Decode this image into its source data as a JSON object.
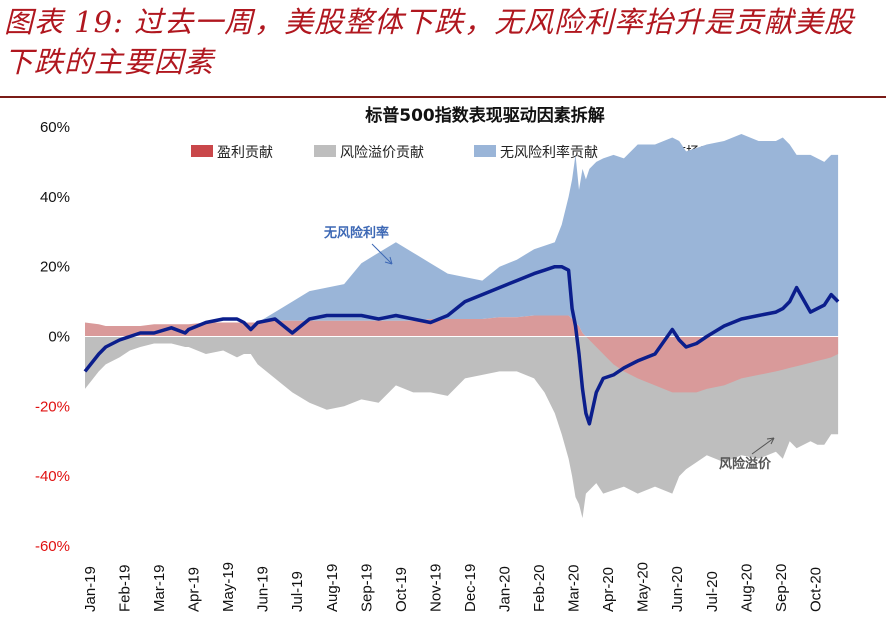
{
  "figure_title": "图表 19: 过去一周，美股整体下跌，无风险利率抬升是贡献美股下跌的主要因素",
  "colors": {
    "title": "#b0171f",
    "earnings": "#c9474a",
    "earnings_fill": "#d99a9a",
    "risk_premium": "#bebebe",
    "risk_free": "#9ab5d8",
    "market": "#0b1e8c",
    "negative_tick": "#e01010"
  },
  "chart_data": {
    "type": "area",
    "title": "标普500指数表现驱动因素拆解",
    "xlabel": "",
    "ylabel": "",
    "ylim": [
      -60,
      60
    ],
    "yticks": [
      "60%",
      "40%",
      "20%",
      "0%",
      "-20%",
      "-40%",
      "-60%"
    ],
    "categories": [
      "Jan-19",
      "Feb-19",
      "Mar-19",
      "Apr-19",
      "May-19",
      "Jun-19",
      "Jul-19",
      "Aug-19",
      "Sep-19",
      "Oct-19",
      "Nov-19",
      "Dec-19",
      "Jan-20",
      "Feb-20",
      "Mar-20",
      "Apr-20",
      "May-20",
      "Jun-20",
      "Jul-20",
      "Aug-20",
      "Sep-20",
      "Oct-20"
    ],
    "legend": [
      "盈利贡献",
      "风险溢价贡献",
      "无风险利率贡献",
      "市场表现"
    ],
    "legend_position": "top",
    "x": [
      0,
      0.4,
      0.6,
      1,
      1.3,
      1.6,
      2,
      2.5,
      2.9,
      3,
      3.5,
      4,
      4.4,
      4.6,
      4.8,
      5,
      5.5,
      6,
      6.5,
      7,
      7.5,
      8,
      8.5,
      9,
      9.5,
      10,
      10.5,
      11,
      11.5,
      12,
      12.5,
      13,
      13.3,
      13.6,
      13.8,
      14,
      14.1,
      14.2,
      14.3,
      14.4,
      14.5,
      14.6,
      14.8,
      15,
      15.3,
      15.6,
      16,
      16.5,
      17,
      17.2,
      17.4,
      17.7,
      18,
      18.5,
      19,
      19.5,
      20,
      20.2,
      20.4,
      20.6,
      21,
      21.2,
      21.4,
      21.6,
      21.8
    ],
    "series": [
      {
        "name": "盈利贡献",
        "values": [
          4,
          3.5,
          3,
          3,
          3,
          3,
          3.5,
          3.5,
          3.5,
          3.5,
          4,
          4,
          4,
          4,
          4,
          4,
          4.5,
          4.5,
          4.5,
          4.5,
          4.5,
          4.5,
          4.5,
          4.5,
          4.5,
          5,
          5,
          5,
          5,
          5.5,
          5.5,
          6,
          6,
          6,
          6,
          6,
          5,
          4,
          3,
          1,
          0,
          -1,
          -3,
          -5,
          -8,
          -10,
          -12,
          -14,
          -16,
          -16,
          -16,
          -16,
          -15,
          -14,
          -12,
          -11,
          -10,
          -9.5,
          -9,
          -8.5,
          -7.5,
          -7,
          -6.5,
          -6,
          -5
        ]
      },
      {
        "name": "风险溢价贡献",
        "values": [
          -15,
          -10,
          -8,
          -6,
          -4,
          -3,
          -2,
          -2,
          -3,
          -3,
          -5,
          -4,
          -6,
          -5,
          -5,
          -8,
          -12,
          -16,
          -19,
          -21,
          -20,
          -18,
          -19,
          -14,
          -16,
          -16,
          -17,
          -12,
          -11,
          -10,
          -10,
          -12,
          -16,
          -22,
          -28,
          -35,
          -40,
          -46,
          -48,
          -52,
          -45,
          -44,
          -42,
          -45,
          -44,
          -43,
          -45,
          -43,
          -45,
          -40,
          -38,
          -36,
          -34,
          -36,
          -34,
          -35,
          -33,
          -35,
          -30,
          -32,
          -30,
          -31,
          -31,
          -28,
          -28
        ]
      },
      {
        "name": "无风险利率贡献",
        "values": [
          -1,
          1,
          1,
          2,
          2,
          2,
          2,
          3,
          2.5,
          3,
          4,
          4,
          4,
          3.5,
          3,
          4,
          7,
          10,
          13,
          14,
          15,
          21,
          24,
          27,
          24,
          21,
          18,
          17,
          16,
          20,
          22,
          25,
          26,
          27,
          32,
          40,
          45,
          52,
          42,
          48,
          45,
          48,
          50,
          51,
          52,
          51,
          55,
          55,
          57,
          56,
          53,
          54,
          55,
          56,
          58,
          56,
          56,
          57,
          55,
          52,
          52,
          51,
          50,
          52,
          52
        ]
      },
      {
        "name": "市场表现",
        "values": [
          -10,
          -5,
          -3,
          -1,
          0,
          1,
          1,
          2.5,
          1,
          2,
          4,
          5,
          5,
          4,
          2,
          4,
          5,
          1,
          5,
          6,
          6,
          6,
          5,
          6,
          5,
          4,
          6,
          10,
          12,
          14,
          16,
          18,
          19,
          20,
          20,
          19,
          8,
          3,
          -5,
          -15,
          -22,
          -25,
          -16,
          -12,
          -11,
          -9,
          -7,
          -5,
          2,
          -1,
          -3,
          -2,
          0,
          3,
          5,
          6,
          7,
          8,
          10,
          14,
          7,
          8,
          9,
          12,
          10
        ]
      }
    ],
    "annotations": [
      {
        "text": "无风险利率",
        "target": "无风险利率贡献"
      },
      {
        "text": "风险溢价",
        "target": "风险溢价贡献"
      }
    ]
  }
}
